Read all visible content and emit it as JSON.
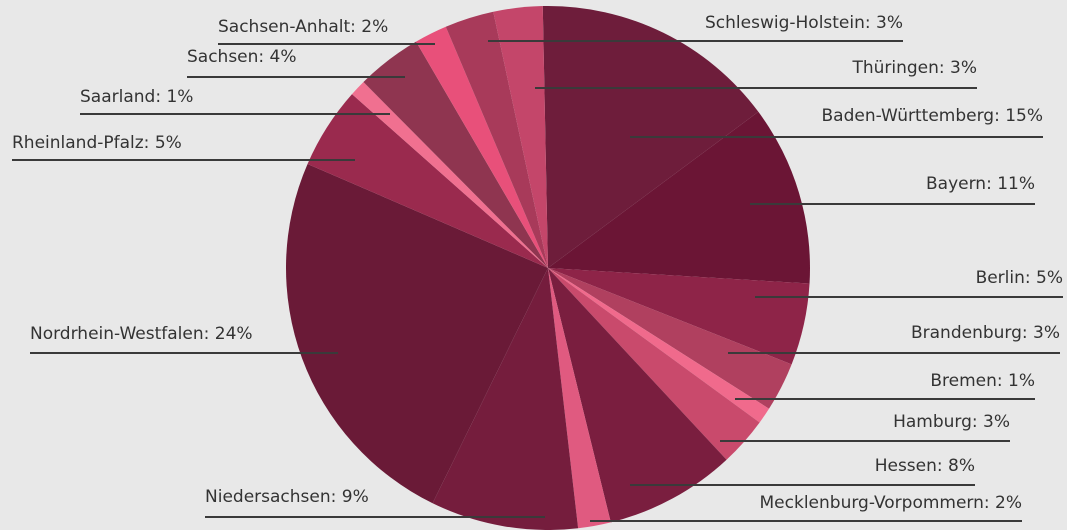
{
  "chart_data": {
    "type": "pie",
    "categories": [
      "Baden-Württemberg",
      "Bayern",
      "Berlin",
      "Brandenburg",
      "Bremen",
      "Hamburg",
      "Hessen",
      "Mecklenburg-Vorpommern",
      "Niedersachsen",
      "Nordrhein-Westfalen",
      "Rheinland-Pfalz",
      "Saarland",
      "Sachsen",
      "Sachsen-Anhalt",
      "Schleswig-Holstein",
      "Thüringen"
    ],
    "values": [
      15,
      11,
      5,
      3,
      1,
      3,
      8,
      2,
      9,
      24,
      5,
      1,
      4,
      2,
      3,
      3
    ],
    "value_labels": [
      "Baden-Württemberg: 15%",
      "Bayern: 11%",
      "Berlin: 5%",
      "Brandenburg: 3%",
      "Bremen: 1%",
      "Hamburg: 3%",
      "Hessen: 8%",
      "Mecklenburg-Vorpommern: 2%",
      "Niedersachsen: 9%",
      "Nordrhein-Westfalen: 24%",
      "Rheinland-Pfalz: 5%",
      "Saarland: 1%",
      "Sachsen: 4%",
      "Sachsen-Anhalt: 2%",
      "Schleswig-Holstein: 3%",
      "Thüringen: 3%"
    ],
    "colors": [
      "#6e1d3b",
      "#6b1535",
      "#8e2448",
      "#b0405f",
      "#f06a8c",
      "#c94a6c",
      "#7a1e3f",
      "#e05a80",
      "#751d3d",
      "#6a1a37",
      "#9a2a4e",
      "#f07090",
      "#8f3550",
      "#e8507a",
      "#a83a5a",
      "#c4466a"
    ]
  }
}
